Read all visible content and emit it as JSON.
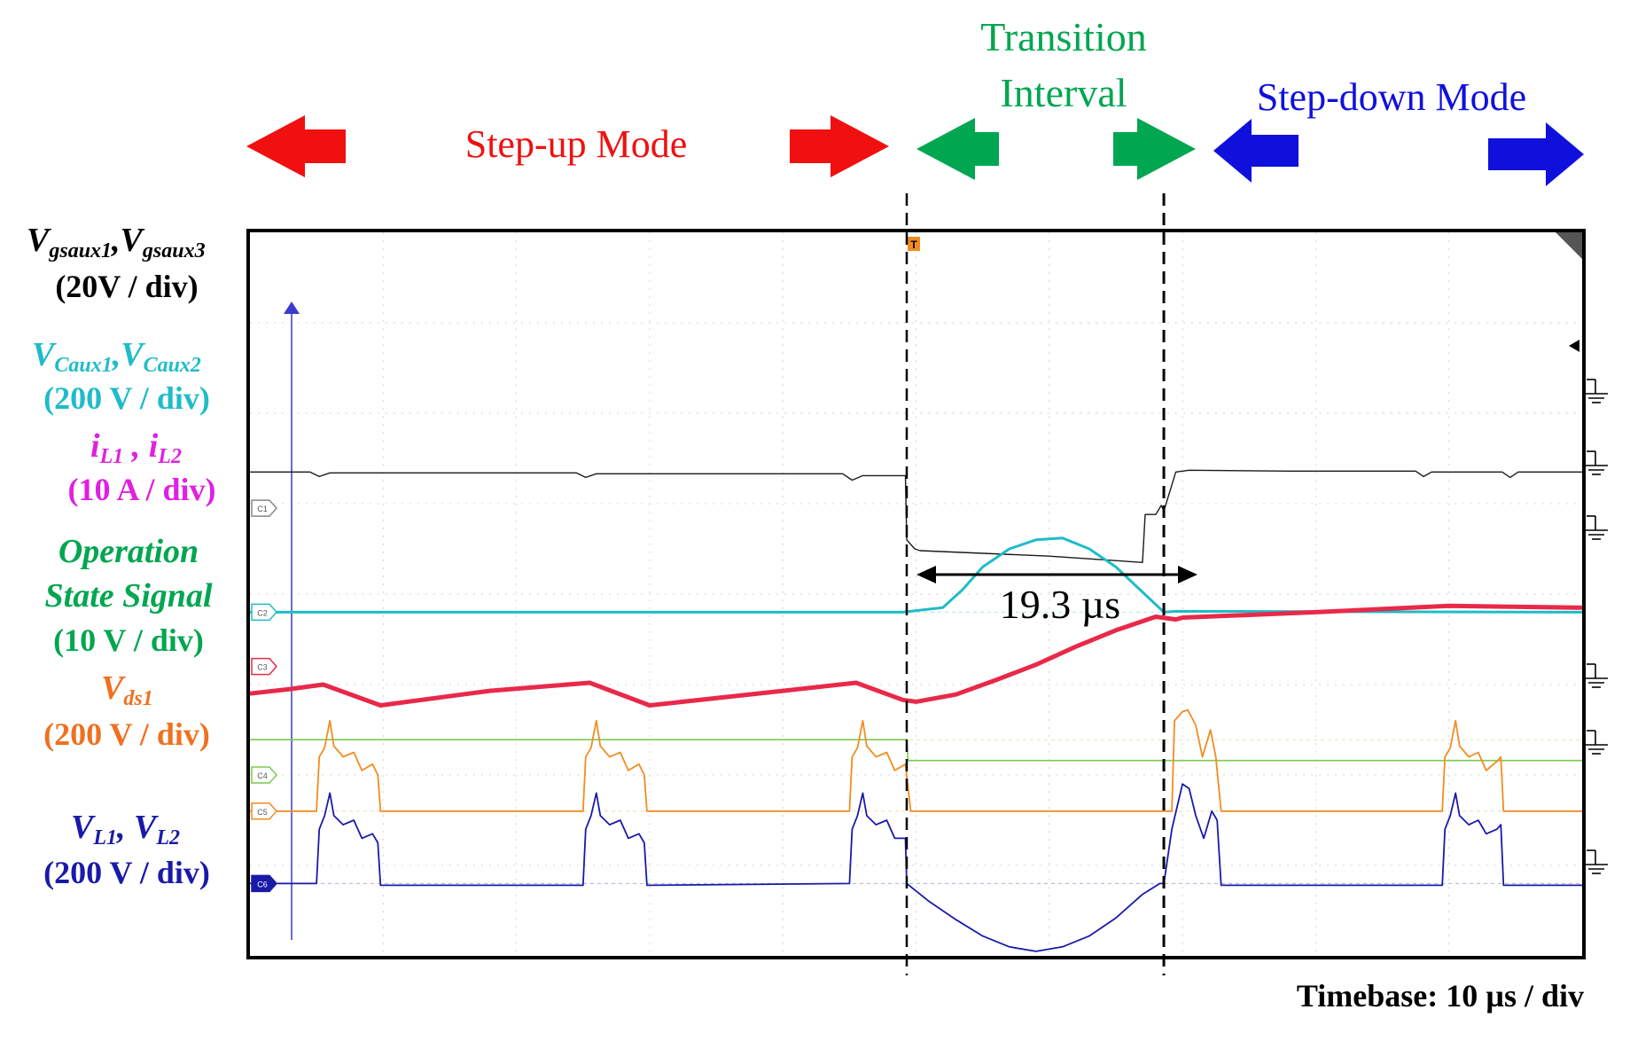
{
  "chart_data": {
    "type": "line",
    "title": "",
    "timebase": "Timebase: 10 µs / div",
    "x": {
      "unit": "µs",
      "per_div": 10,
      "divisions": 10,
      "range": [
        0,
        100
      ]
    },
    "y": {
      "divisions": 8
    },
    "modes": [
      {
        "label": "Step-up Mode",
        "color": "#ee1111"
      },
      {
        "label_line1": "Transition",
        "label_line2": "Interval",
        "color": "#00a650"
      },
      {
        "label": "Step-down Mode",
        "color": "#1010dd"
      }
    ],
    "transition": {
      "start_us": 49.3,
      "end_us": 68.6,
      "duration_label": "19.3 µs"
    },
    "channel_markers": [
      "C1",
      "C2",
      "C3",
      "C4",
      "C5",
      "C6"
    ],
    "trigger_marker": "T",
    "series": [
      {
        "name": "Vgsaux1, Vgsaux3",
        "scale": "(20V / div)",
        "color": "#1a1a1a",
        "width": 1.4,
        "points": [
          [
            0,
            5.35
          ],
          [
            4.5,
            5.35
          ],
          [
            5.2,
            5.3
          ],
          [
            6,
            5.34
          ],
          [
            16,
            5.34
          ],
          [
            24.5,
            5.34
          ],
          [
            25.2,
            5.29
          ],
          [
            26,
            5.33
          ],
          [
            44.5,
            5.33
          ],
          [
            45.2,
            5.26
          ],
          [
            46,
            5.31
          ],
          [
            49.2,
            5.31
          ],
          [
            49.3,
            4.6
          ],
          [
            49.9,
            4.5
          ],
          [
            50.3,
            4.48
          ],
          [
            60,
            4.42
          ],
          [
            67,
            4.35
          ],
          [
            67.2,
            4.88
          ],
          [
            68,
            4.88
          ],
          [
            68.4,
            4.98
          ],
          [
            68.6,
            4.92
          ],
          [
            69.5,
            5.35
          ],
          [
            70.5,
            5.37
          ],
          [
            78,
            5.36
          ],
          [
            87.5,
            5.36
          ],
          [
            88.1,
            5.3
          ],
          [
            88.7,
            5.35
          ],
          [
            94,
            5.35
          ],
          [
            94.6,
            5.29
          ],
          [
            95.2,
            5.35
          ],
          [
            100,
            5.35
          ]
        ]
      },
      {
        "name": "VCaux1, VCaux2",
        "scale": "(200 V / div)",
        "color": "#1fbcc8",
        "width": 3,
        "points": [
          [
            0,
            3.8
          ],
          [
            49,
            3.8
          ],
          [
            52,
            3.85
          ],
          [
            53.5,
            4.05
          ],
          [
            55,
            4.3
          ],
          [
            57,
            4.5
          ],
          [
            59,
            4.6
          ],
          [
            61,
            4.62
          ],
          [
            63,
            4.5
          ],
          [
            65,
            4.3
          ],
          [
            66.8,
            4.05
          ],
          [
            68.6,
            3.8
          ],
          [
            69.5,
            3.81
          ],
          [
            100,
            3.8
          ]
        ]
      },
      {
        "name": "iL1, iL2",
        "scale": "(10 A / div)",
        "color": "#e8294a",
        "width": 5,
        "points": [
          [
            0,
            2.9
          ],
          [
            3,
            2.95
          ],
          [
            5.5,
            3.0
          ],
          [
            9.8,
            2.77
          ],
          [
            18,
            2.93
          ],
          [
            25.5,
            3.02
          ],
          [
            30,
            2.77
          ],
          [
            40,
            2.93
          ],
          [
            45.5,
            3.02
          ],
          [
            49,
            2.83
          ],
          [
            50,
            2.81
          ],
          [
            53,
            2.89
          ],
          [
            56,
            3.05
          ],
          [
            59,
            3.22
          ],
          [
            62,
            3.42
          ],
          [
            65,
            3.6
          ],
          [
            68,
            3.75
          ],
          [
            69.5,
            3.72
          ],
          [
            70,
            3.74
          ],
          [
            80,
            3.8
          ],
          [
            90,
            3.87
          ],
          [
            100,
            3.85
          ]
        ]
      },
      {
        "name": "Operation State Signal",
        "scale": "(10 V / div)",
        "color": "#7cc94f",
        "width": 1.6,
        "points": [
          [
            0,
            2.39
          ],
          [
            49.3,
            2.39
          ],
          [
            49.4,
            2.16
          ],
          [
            100,
            2.16
          ]
        ]
      },
      {
        "name": "Vds1",
        "scale": "(200 V / div)",
        "color": "#f28c22",
        "width": 1.8,
        "points": [
          [
            0,
            1.6
          ],
          [
            5,
            1.6
          ],
          [
            5.2,
            2.2
          ],
          [
            5.6,
            2.3
          ],
          [
            6,
            2.6
          ],
          [
            6.3,
            2.32
          ],
          [
            7,
            2.2
          ],
          [
            7.8,
            2.25
          ],
          [
            8.4,
            2.05
          ],
          [
            9.2,
            2.12
          ],
          [
            9.6,
            2.0
          ],
          [
            9.8,
            1.6
          ],
          [
            25,
            1.6
          ],
          [
            25.2,
            2.2
          ],
          [
            25.6,
            2.3
          ],
          [
            26,
            2.6
          ],
          [
            26.3,
            2.32
          ],
          [
            27,
            2.2
          ],
          [
            27.8,
            2.25
          ],
          [
            28.4,
            2.05
          ],
          [
            29.2,
            2.12
          ],
          [
            29.6,
            2.0
          ],
          [
            29.8,
            1.6
          ],
          [
            45,
            1.6
          ],
          [
            45.2,
            2.2
          ],
          [
            45.6,
            2.3
          ],
          [
            46,
            2.6
          ],
          [
            46.3,
            2.32
          ],
          [
            47,
            2.2
          ],
          [
            47.8,
            2.25
          ],
          [
            48.4,
            2.05
          ],
          [
            49.2,
            2.12
          ],
          [
            49.6,
            1.6
          ],
          [
            69.2,
            1.6
          ],
          [
            69.4,
            2.6
          ],
          [
            70,
            2.7
          ],
          [
            70.4,
            2.72
          ],
          [
            71,
            2.55
          ],
          [
            71.5,
            2.2
          ],
          [
            72.1,
            2.5
          ],
          [
            72.5,
            2.2
          ],
          [
            72.9,
            1.6
          ],
          [
            89.5,
            1.6
          ],
          [
            89.7,
            2.2
          ],
          [
            90.1,
            2.3
          ],
          [
            90.5,
            2.6
          ],
          [
            90.8,
            2.32
          ],
          [
            91.5,
            2.2
          ],
          [
            92.2,
            2.25
          ],
          [
            92.8,
            2.05
          ],
          [
            93.6,
            2.15
          ],
          [
            93.9,
            2.2
          ],
          [
            94.1,
            1.6
          ],
          [
            100,
            1.6
          ]
        ]
      },
      {
        "name": "VL1, VL2",
        "scale": "(200 V / div)",
        "color": "#1a1aa8",
        "width": 1.8,
        "points": [
          [
            0,
            0.8
          ],
          [
            5,
            0.8
          ],
          [
            5.2,
            1.4
          ],
          [
            5.6,
            1.55
          ],
          [
            6,
            1.8
          ],
          [
            6.3,
            1.55
          ],
          [
            7,
            1.45
          ],
          [
            7.8,
            1.5
          ],
          [
            8.4,
            1.3
          ],
          [
            9.2,
            1.35
          ],
          [
            9.6,
            1.25
          ],
          [
            9.8,
            0.78
          ],
          [
            25,
            0.78
          ],
          [
            25.2,
            1.4
          ],
          [
            25.6,
            1.55
          ],
          [
            26,
            1.8
          ],
          [
            26.3,
            1.55
          ],
          [
            27,
            1.45
          ],
          [
            27.8,
            1.5
          ],
          [
            28.4,
            1.3
          ],
          [
            29.2,
            1.35
          ],
          [
            29.6,
            1.25
          ],
          [
            29.8,
            0.78
          ],
          [
            45,
            0.8
          ],
          [
            45.2,
            1.4
          ],
          [
            45.6,
            1.55
          ],
          [
            46,
            1.8
          ],
          [
            46.3,
            1.55
          ],
          [
            47,
            1.45
          ],
          [
            47.8,
            1.5
          ],
          [
            48.4,
            1.3
          ],
          [
            49.2,
            1.3
          ],
          [
            49.3,
            0.8
          ],
          [
            51,
            0.6
          ],
          [
            53,
            0.4
          ],
          [
            55,
            0.22
          ],
          [
            57,
            0.1
          ],
          [
            59,
            0.05
          ],
          [
            61,
            0.1
          ],
          [
            63,
            0.22
          ],
          [
            65,
            0.42
          ],
          [
            67,
            0.68
          ],
          [
            68.3,
            0.8
          ],
          [
            68.6,
            0.8
          ],
          [
            69.2,
            1.4
          ],
          [
            70,
            1.9
          ],
          [
            70.5,
            1.85
          ],
          [
            71,
            1.55
          ],
          [
            71.6,
            1.3
          ],
          [
            72.2,
            1.6
          ],
          [
            72.6,
            1.5
          ],
          [
            72.9,
            0.78
          ],
          [
            89.5,
            0.78
          ],
          [
            89.7,
            1.4
          ],
          [
            90.1,
            1.55
          ],
          [
            90.5,
            1.8
          ],
          [
            90.8,
            1.55
          ],
          [
            91.5,
            1.45
          ],
          [
            92.2,
            1.5
          ],
          [
            92.8,
            1.35
          ],
          [
            93.6,
            1.4
          ],
          [
            93.9,
            1.45
          ],
          [
            94.1,
            0.78
          ],
          [
            100,
            0.78
          ]
        ]
      }
    ],
    "labels": [
      {
        "id": "vgs",
        "line1_main1": "V",
        "line1_sub1": "gsaux1",
        "line1_sep": ",",
        "line1_main2": "V",
        "line1_sub2": "gsaux3",
        "line2": "(20V / div)",
        "color": "#000000"
      },
      {
        "id": "vcaux",
        "line1_main1": "V",
        "line1_sub1": "Caux1",
        "line1_sep": ",",
        "line1_main2": "V",
        "line1_sub2": "Caux2",
        "line2": "(200 V / div)",
        "color": "#1fbcc8"
      },
      {
        "id": "il",
        "line1_main1": "i",
        "line1_sub1": "L1",
        "line1_sep": " , ",
        "line1_main2": "i",
        "line1_sub2": "L2",
        "line2": "(10 A / div)",
        "color": "#e020e0"
      },
      {
        "id": "op",
        "text1": "Operation",
        "text2": "State Signal",
        "line3": "(10 V / div)",
        "color": "#00a650"
      },
      {
        "id": "vds",
        "line1_main1": "V",
        "line1_sub1": "ds1",
        "line2": "(200 V / div)",
        "color": "#f07020"
      },
      {
        "id": "vl",
        "line1_main1": "V",
        "line1_sub1": "L1",
        "line1_sep": ", ",
        "line1_main2": "V",
        "line1_sub2": "L2",
        "line2": "(200 V / div)",
        "color": "#1a1aa8"
      }
    ]
  }
}
